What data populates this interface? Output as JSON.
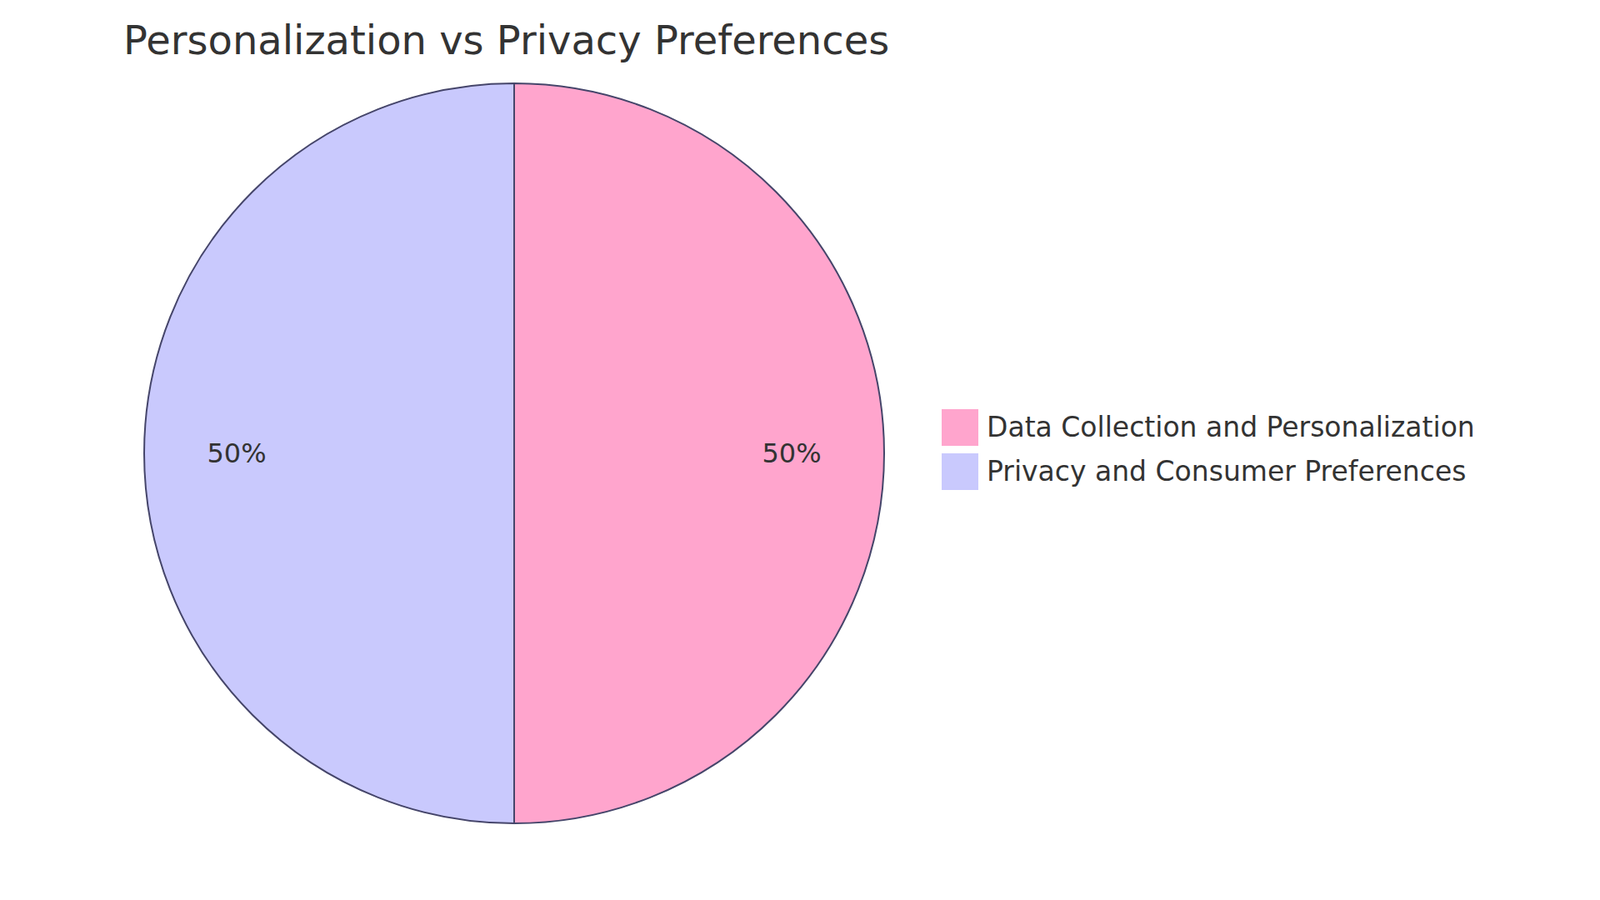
{
  "chart_data": {
    "type": "pie",
    "title": "Personalization vs Privacy Preferences",
    "categories": [
      "Data Collection and Personalization",
      "Privacy and Consumer Preferences"
    ],
    "values": [
      50,
      50
    ],
    "value_labels": [
      "50%",
      "50%"
    ],
    "colors": [
      "#ffa5cd",
      "#c9c9fd"
    ],
    "data_labels": true,
    "legend": "right"
  }
}
